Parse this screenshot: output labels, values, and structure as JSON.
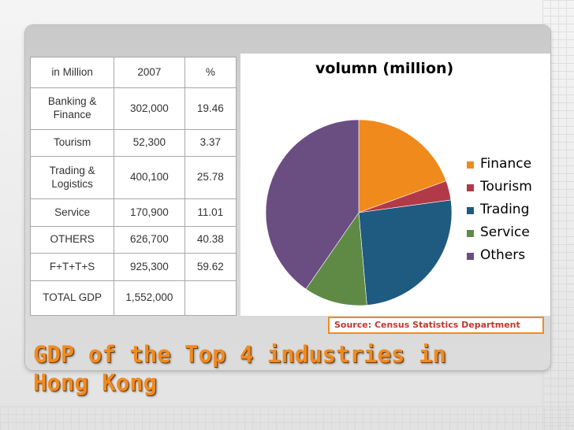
{
  "slide": {
    "title_line1": "GDP of the Top 4 industries in",
    "title_line2": "Hong Kong",
    "source_text": "Source: Census Statistics Department"
  },
  "table": {
    "headers": [
      "in Million",
      "2007",
      "%"
    ],
    "rows": [
      {
        "label": "Banking & Finance",
        "value": "302,000",
        "pct": "19.46"
      },
      {
        "label": "Tourism",
        "value": "52,300",
        "pct": "3.37"
      },
      {
        "label": "Trading & Logistics",
        "value": "400,100",
        "pct": "25.78"
      },
      {
        "label": "Service",
        "value": "170,900",
        "pct": "11.01"
      },
      {
        "label": "OTHERS",
        "value": "626,700",
        "pct": "40.38"
      },
      {
        "label": "F+T+T+S",
        "value": "925,300",
        "pct": "59.62"
      },
      {
        "label": "TOTAL GDP",
        "value": "1,552,000",
        "pct": ""
      }
    ]
  },
  "chart_data": {
    "type": "pie",
    "title": "volumn (million)",
    "categories": [
      "Finance",
      "Tourism",
      "Trading",
      "Service",
      "Others"
    ],
    "values": [
      302000,
      52300,
      400100,
      170900,
      626700
    ],
    "colors": [
      "#f08a1c",
      "#b23a48",
      "#1f5a80",
      "#5f8a45",
      "#6a4e82"
    ],
    "legend_position": "right",
    "start_angle_deg": 0,
    "direction": "clockwise"
  }
}
